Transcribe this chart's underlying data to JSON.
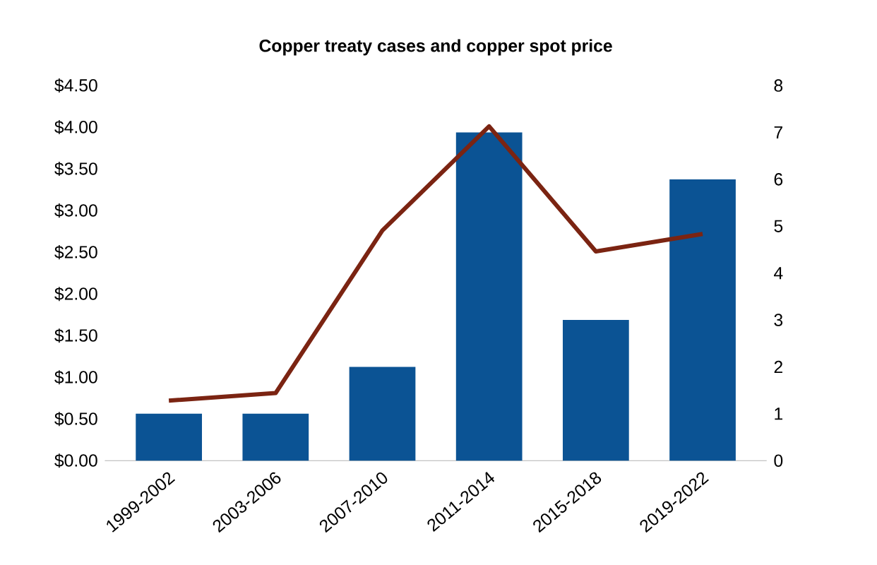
{
  "chart_data": {
    "type": "bar",
    "title": "Copper treaty cases and copper spot price",
    "categories": [
      "1999-2002",
      "2003-2006",
      "2007-2010",
      "2011-2014",
      "2015-2018",
      "2019-2022"
    ],
    "series": [
      {
        "axis": "y2",
        "color": "#0b5394",
        "values": [
          1,
          1,
          2,
          7,
          3,
          6
        ]
      },
      {
        "type": "line",
        "axis": "y",
        "color": "#7b2412",
        "values": [
          0.72,
          0.81,
          2.76,
          4.01,
          2.51,
          2.72
        ]
      }
    ],
    "ylim": [
      0,
      4.5
    ],
    "yticks": [
      {
        "value": 0,
        "label": "$0.00"
      },
      {
        "value": 0.5,
        "label": "$0.50"
      },
      {
        "value": 1,
        "label": "$1.00"
      },
      {
        "value": 1.5,
        "label": "$1.50"
      },
      {
        "value": 2,
        "label": "$2.00"
      },
      {
        "value": 2.5,
        "label": "$2.50"
      },
      {
        "value": 3,
        "label": "$3.00"
      },
      {
        "value": 3.5,
        "label": "$3.50"
      },
      {
        "value": 4,
        "label": "$4.00"
      },
      {
        "value": 4.5,
        "label": "$4.50"
      }
    ],
    "y2lim": [
      0,
      8
    ],
    "y2ticks": [
      0,
      1,
      2,
      3,
      4,
      5,
      6,
      7,
      8
    ]
  }
}
